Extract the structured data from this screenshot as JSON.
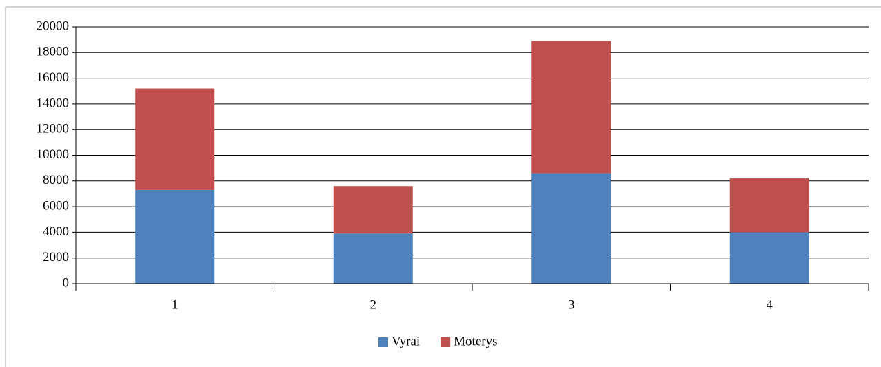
{
  "chart_data": {
    "type": "stacked-bar",
    "categories": [
      "1",
      "2",
      "3",
      "4"
    ],
    "series": [
      {
        "name": "Vyrai",
        "color": "#4f81bd",
        "values": [
          7300,
          3900,
          8600,
          4000
        ]
      },
      {
        "name": "Moterys",
        "color": "#c0504d",
        "values": [
          7900,
          3700,
          10300,
          4200
        ]
      }
    ],
    "ylim": [
      0,
      20000
    ],
    "yticks": [
      0,
      2000,
      4000,
      6000,
      8000,
      10000,
      12000,
      14000,
      16000,
      18000,
      20000
    ],
    "grid": true,
    "legend": "bottom"
  }
}
